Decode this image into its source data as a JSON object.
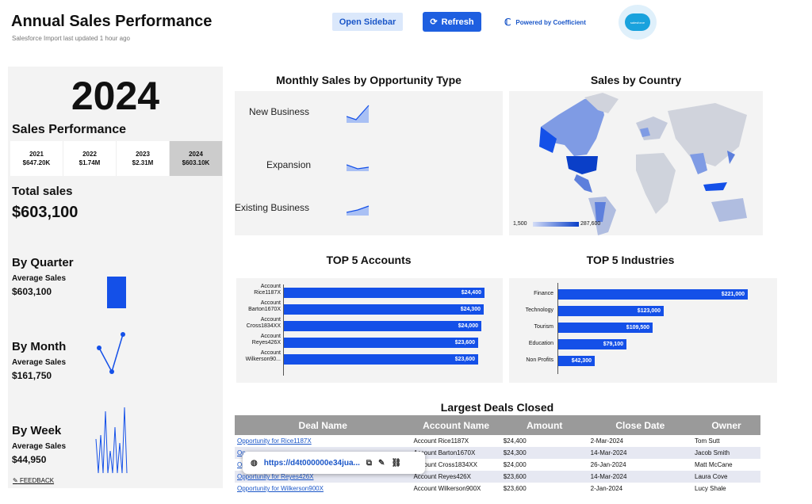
{
  "header": {
    "title": "Annual Sales Performance",
    "subtitle": "Salesforce Import last updated 1 hour ago",
    "open_sidebar": "Open Sidebar",
    "refresh": "Refresh",
    "powered_by": "Powered by Coefficient",
    "logo_text": "salesforce"
  },
  "left": {
    "year": "2024",
    "sales_performance": "Sales Performance",
    "years": [
      {
        "year": "2021",
        "value": "$647.20K"
      },
      {
        "year": "2022",
        "value": "$1.74M"
      },
      {
        "year": "2023",
        "value": "$2.31M"
      },
      {
        "year": "2024",
        "value": "$603.10K"
      }
    ],
    "total_label": "Total sales",
    "total_value": "$603,100",
    "quarter_label": "By Quarter",
    "quarter_avg_label": "Average Sales",
    "quarter_avg_value": "$603,100",
    "month_label": "By Month",
    "month_avg_label": "Average Sales",
    "month_avg_value": "$161,750",
    "week_label": "By Week",
    "week_avg_label": "Average Sales",
    "week_avg_value": "$44,950",
    "feedback": "FEEDBACK"
  },
  "monthly": {
    "title": "Monthly Sales by Opportunity Type",
    "types": [
      "New Business",
      "Expansion",
      "Existing Business"
    ]
  },
  "country": {
    "title": "Sales by Country",
    "legend_min": "1,500",
    "legend_max": "287,600"
  },
  "chart_data": [
    {
      "type": "bar",
      "title": "TOP 5 Accounts",
      "categories": [
        "Account Rice1187X",
        "Account Barton1670X",
        "Account Cross1834XX",
        "Account Reyes426X",
        "Account Wilkerson90..."
      ],
      "values": [
        24400,
        24300,
        24000,
        23600,
        23600
      ],
      "labels": [
        "$24,400",
        "$24,300",
        "$24,000",
        "$23,600",
        "$23,600"
      ],
      "xlim": [
        0,
        26000
      ]
    },
    {
      "type": "bar",
      "title": "TOP 5 Industries",
      "categories": [
        "Finance",
        "Technology",
        "Tourism",
        "Education",
        "Non Profits"
      ],
      "values": [
        221000,
        123000,
        109500,
        79100,
        42300
      ],
      "labels": [
        "$221,000",
        "$123,000",
        "$109,500",
        "$79,100",
        "$42,300"
      ],
      "xlim": [
        0,
        240000
      ]
    }
  ],
  "deals": {
    "title": "Largest Deals Closed",
    "columns": [
      "Deal Name",
      "Account Name",
      "Amount",
      "Close Date",
      "Owner"
    ],
    "rows": [
      [
        "Opportunity for Rice1187X",
        "Account  Rice1187X",
        "$24,400",
        "2-Mar-2024",
        "Tom Sutt"
      ],
      [
        "Op",
        "Account  Barton1670X",
        "$24,300",
        "14-Mar-2024",
        "Jacob Smith"
      ],
      [
        "Op",
        "Account  Cross1834XX",
        "$24,000",
        "26-Jan-2024",
        "Matt McCane"
      ],
      [
        "Opportunity for Reyes426X",
        "Account  Reyes426X",
        "$23,600",
        "14-Mar-2024",
        "Laura Cove"
      ],
      [
        "Opportunity for Wilkerson900X",
        "Account  Wilkerson900X",
        "$23,600",
        "2-Jan-2024",
        "Lucy Shale"
      ]
    ],
    "popup_url": "https://d4t000000e34jua..."
  }
}
